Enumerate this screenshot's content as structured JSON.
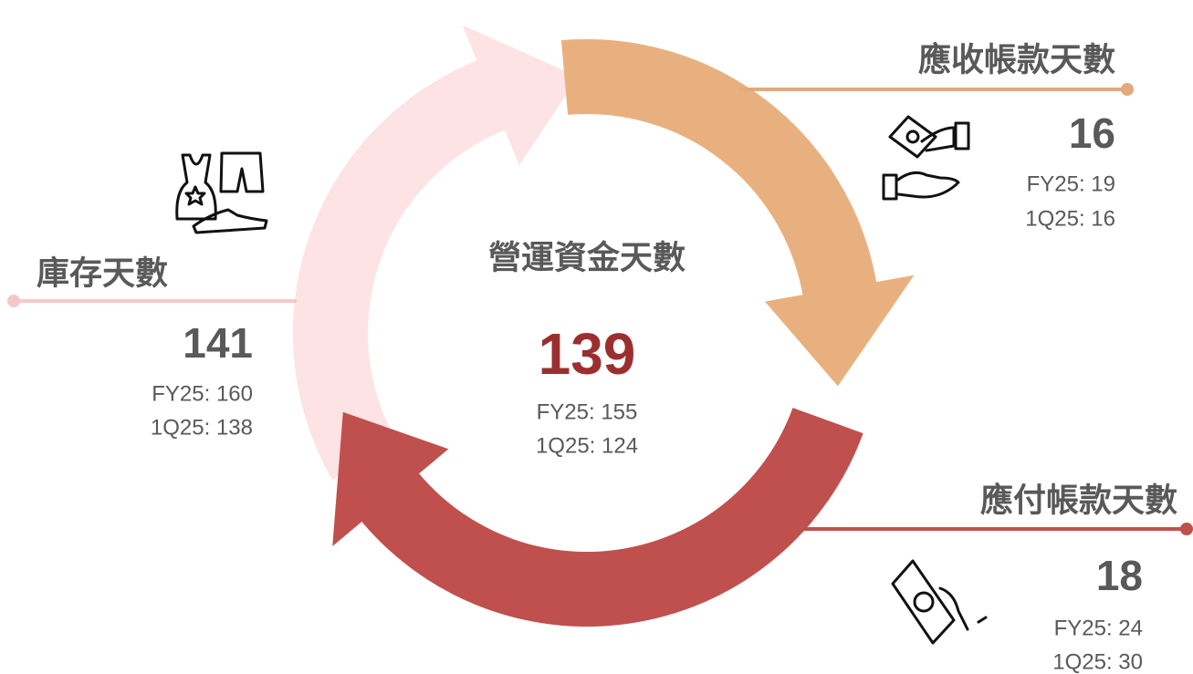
{
  "center": {
    "title": "營運資金天數",
    "value": 139,
    "lines": [
      "FY25: 155",
      "1Q25: 124"
    ]
  },
  "receivables": {
    "title": "應收帳款天數",
    "value": 16,
    "lines": [
      "FY25: 19",
      "1Q25: 16"
    ]
  },
  "payables": {
    "title": "應付帳款天數",
    "value": 18,
    "lines": [
      "FY25: 24",
      "1Q25: 30"
    ]
  },
  "inventory": {
    "title": "庫存天數",
    "value": 141,
    "lines": [
      "FY25: 160",
      "1Q25: 138"
    ]
  }
}
